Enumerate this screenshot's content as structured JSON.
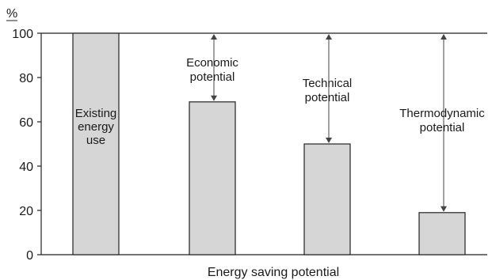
{
  "chart_data": {
    "type": "bar",
    "ylabel": "%",
    "xlabel": "Energy saving potential",
    "ylim": [
      0,
      100
    ],
    "yticks": [
      0,
      20,
      40,
      60,
      80,
      100
    ],
    "grid": false,
    "categories": [
      "Existing energy use",
      "Economic potential",
      "Technical potential",
      "Thermodynamic potential"
    ],
    "values": [
      100,
      69,
      50,
      19
    ],
    "annotations": [
      {
        "lines": [
          "Existing",
          "energy",
          "use"
        ]
      },
      {
        "lines": [
          "Economic",
          "potential"
        ]
      },
      {
        "lines": [
          "Technical",
          "potential"
        ]
      },
      {
        "lines": [
          "Thermodynamic",
          "potential"
        ]
      }
    ],
    "colors": {
      "bar_fill": "#d6d6d6",
      "bar_stroke": "#222222",
      "arrow": "#444444"
    }
  }
}
